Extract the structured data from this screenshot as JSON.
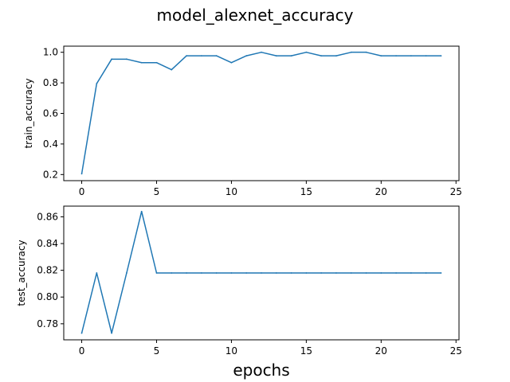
{
  "figure": {
    "title": "model_alexnet_accuracy",
    "xlabel": "epochs"
  },
  "colors": {
    "line": "#1f77b4",
    "axis": "#000000",
    "background": "#ffffff"
  },
  "chart_data": [
    {
      "type": "line",
      "title": "",
      "xlabel": "",
      "ylabel": "train_accuracy",
      "xlim": [
        -1.2,
        25.2
      ],
      "ylim": [
        0.16,
        1.04
      ],
      "xticks": [
        0,
        5,
        10,
        15,
        20,
        25
      ],
      "xtick_labels": [
        "0",
        "5",
        "10",
        "15",
        "20",
        "25"
      ],
      "yticks": [
        0.2,
        0.4,
        0.6,
        0.8,
        1.0
      ],
      "ytick_labels": [
        "0.2",
        "0.4",
        "0.6",
        "0.8",
        "1.0"
      ],
      "grid": false,
      "series": [
        {
          "x": [
            0,
            1,
            2,
            3,
            4,
            5,
            6,
            7,
            8,
            9,
            10,
            11,
            12,
            13,
            14,
            15,
            16,
            17,
            18,
            19,
            20,
            21,
            22,
            23,
            24
          ],
          "values": [
            0.205,
            0.795,
            0.955,
            0.955,
            0.932,
            0.932,
            0.886,
            0.977,
            0.977,
            0.977,
            0.932,
            0.977,
            1.0,
            0.977,
            0.977,
            1.0,
            0.977,
            0.977,
            1.0,
            1.0,
            0.977,
            0.977,
            0.977,
            0.977,
            0.977
          ]
        }
      ]
    },
    {
      "type": "line",
      "title": "",
      "xlabel": "epochs",
      "ylabel": "test_accuracy",
      "xlim": [
        -1.2,
        25.2
      ],
      "ylim": [
        0.768,
        0.868
      ],
      "xticks": [
        0,
        5,
        10,
        15,
        20,
        25
      ],
      "xtick_labels": [
        "0",
        "5",
        "10",
        "15",
        "20",
        "25"
      ],
      "yticks": [
        0.78,
        0.8,
        0.82,
        0.84,
        0.86
      ],
      "ytick_labels": [
        "0.78",
        "0.80",
        "0.82",
        "0.84",
        "0.86"
      ],
      "grid": false,
      "series": [
        {
          "x": [
            0,
            1,
            2,
            3,
            4,
            5,
            6,
            7,
            8,
            9,
            10,
            11,
            12,
            13,
            14,
            15,
            16,
            17,
            18,
            19,
            20,
            21,
            22,
            23,
            24
          ],
          "values": [
            0.773,
            0.818,
            0.773,
            0.818,
            0.864,
            0.818,
            0.818,
            0.818,
            0.818,
            0.818,
            0.818,
            0.818,
            0.818,
            0.818,
            0.818,
            0.818,
            0.818,
            0.818,
            0.818,
            0.818,
            0.818,
            0.818,
            0.818,
            0.818,
            0.818
          ]
        }
      ]
    }
  ]
}
